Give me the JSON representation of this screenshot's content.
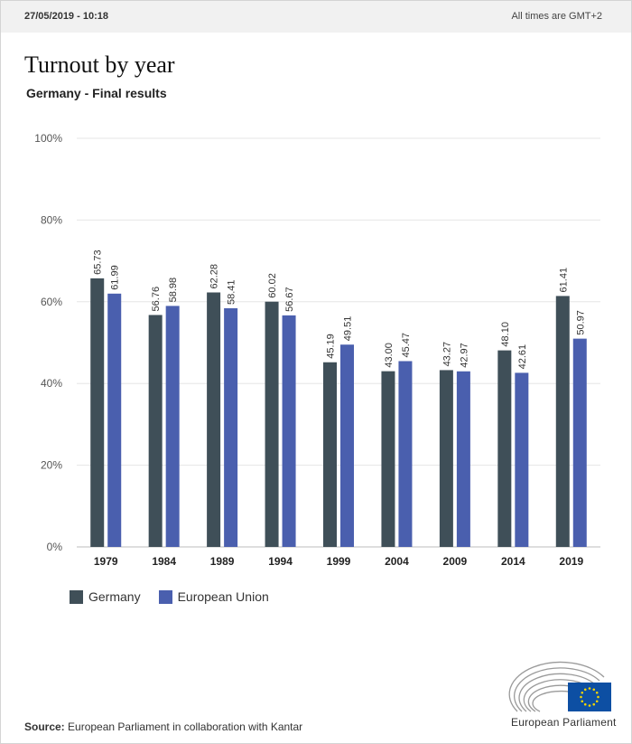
{
  "header": {
    "timestamp": "27/05/2019 - 10:18",
    "timezone_note": "All times are GMT+2"
  },
  "chart_data": {
    "type": "bar",
    "title": "Turnout by year",
    "subtitle": "Germany - Final results",
    "categories": [
      "1979",
      "1984",
      "1989",
      "1994",
      "1999",
      "2004",
      "2009",
      "2014",
      "2019"
    ],
    "series": [
      {
        "name": "Germany",
        "color": "#3f4f58",
        "values": [
          65.73,
          56.76,
          62.28,
          60.02,
          45.19,
          43.0,
          43.27,
          48.1,
          61.41
        ],
        "labels": [
          "65.73",
          "56.76",
          "62.28",
          "60.02",
          "45.19",
          "43.00",
          "43.27",
          "48.10",
          "61.41"
        ]
      },
      {
        "name": "European Union",
        "color": "#4a5fae",
        "values": [
          61.99,
          58.98,
          58.41,
          56.67,
          49.51,
          45.47,
          42.97,
          42.61,
          50.97
        ],
        "labels": [
          "61.99",
          "58.98",
          "58.41",
          "56.67",
          "49.51",
          "45.47",
          "42.97",
          "42.61",
          "50.97"
        ]
      }
    ],
    "ylim": [
      0,
      100
    ],
    "yticks": [
      0,
      20,
      40,
      60,
      80,
      100
    ],
    "ytick_labels": [
      "0%",
      "20%",
      "40%",
      "60%",
      "80%",
      "100%"
    ],
    "grid": true,
    "legend_position": "bottom-left"
  },
  "footer": {
    "source_label": "Source:",
    "source_text": "European Parliament in collaboration with Kantar",
    "logo_text": "European Parliament"
  }
}
